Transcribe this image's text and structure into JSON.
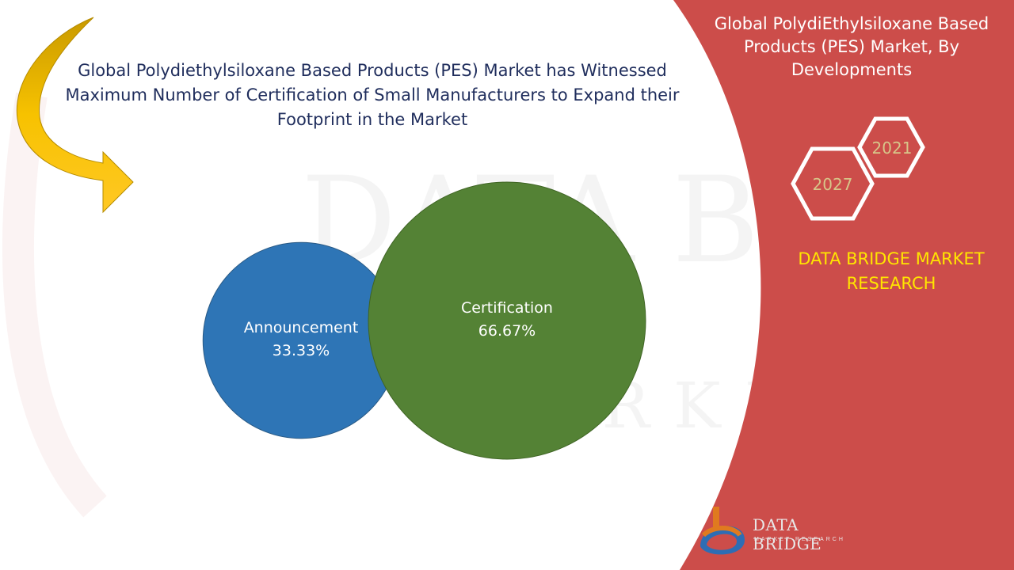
{
  "headline": "Global Polydiethylsiloxane Based Products (PES) Market has Witnessed Maximum Number of Certification of Small Manufacturers to Expand their Footprint in the Market",
  "panel": {
    "title": "Global PolydiEthylsiloxane Based Products (PES) Market, By Developments",
    "years": [
      "2021",
      "2027"
    ],
    "brand": "DATA BRIDGE MARKET RESEARCH"
  },
  "logo": {
    "name": "DATA BRIDGE",
    "tagline": "MARKET RESEARCH"
  },
  "colors": {
    "panel_red": "#cc4d4a",
    "announcement_blue": "#2e75b6",
    "certification_green": "#548235",
    "arrow_gold": "#f0b400",
    "headline_navy": "#1f2d5c",
    "brand_yellow": "#ffe500",
    "hex_text": "#d7c589"
  },
  "chart_data": {
    "type": "bubble",
    "title": "",
    "series": [
      {
        "name": "Announcement",
        "value": 33.33,
        "label": "33.33%",
        "color": "#2e75b6"
      },
      {
        "name": "Certification",
        "value": 66.67,
        "label": "66.67%",
        "color": "#548235"
      }
    ]
  }
}
